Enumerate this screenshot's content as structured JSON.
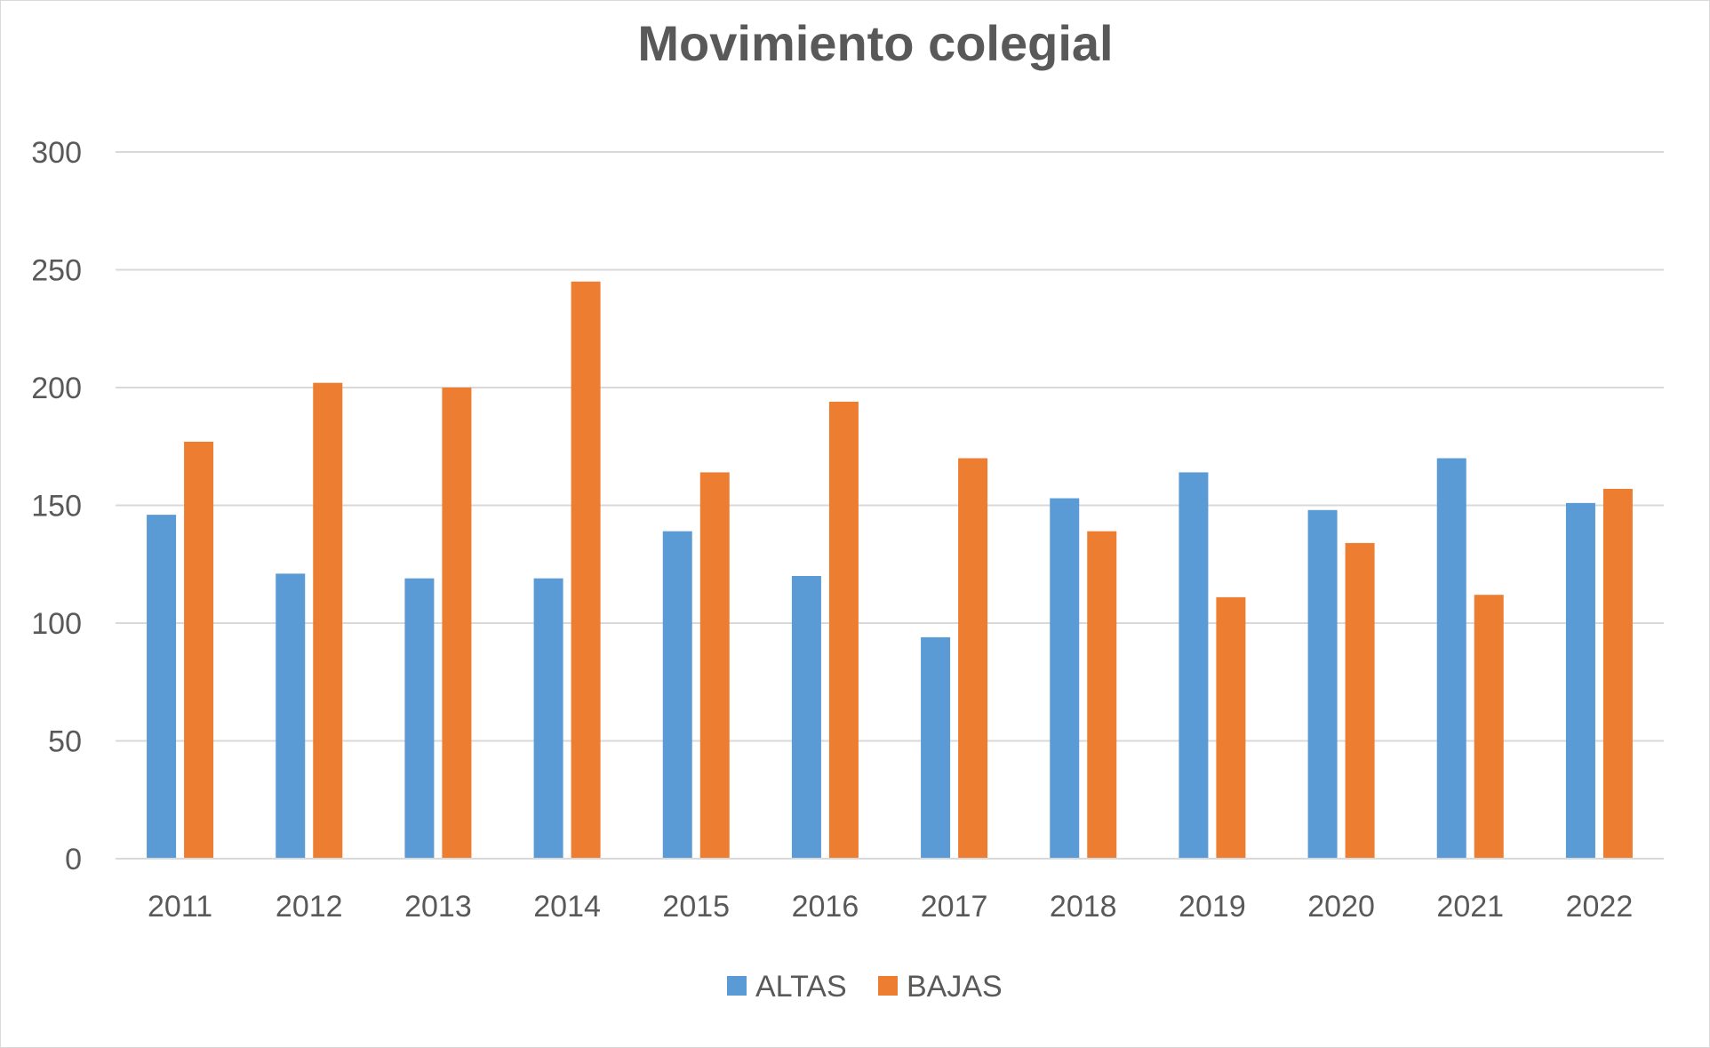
{
  "chart_data": {
    "type": "bar",
    "title": "Movimiento colegial",
    "xlabel": "",
    "ylabel": "",
    "ylim": [
      0,
      300
    ],
    "yticks": [
      "0",
      "50",
      "100",
      "150",
      "200",
      "250",
      "300"
    ],
    "grid": true,
    "legend_position": "bottom",
    "categories": [
      "2011",
      "2012",
      "2013",
      "2014",
      "2015",
      "2016",
      "2017",
      "2018",
      "2019",
      "2020",
      "2021",
      "2022"
    ],
    "series": [
      {
        "name": "ALTAS",
        "color": "#5b9bd5",
        "values": [
          146,
          121,
          119,
          119,
          139,
          120,
          94,
          153,
          164,
          148,
          170,
          151
        ]
      },
      {
        "name": "BAJAS",
        "color": "#ed7d31",
        "values": [
          177,
          202,
          200,
          245,
          164,
          194,
          170,
          139,
          111,
          134,
          112,
          157
        ]
      }
    ]
  }
}
